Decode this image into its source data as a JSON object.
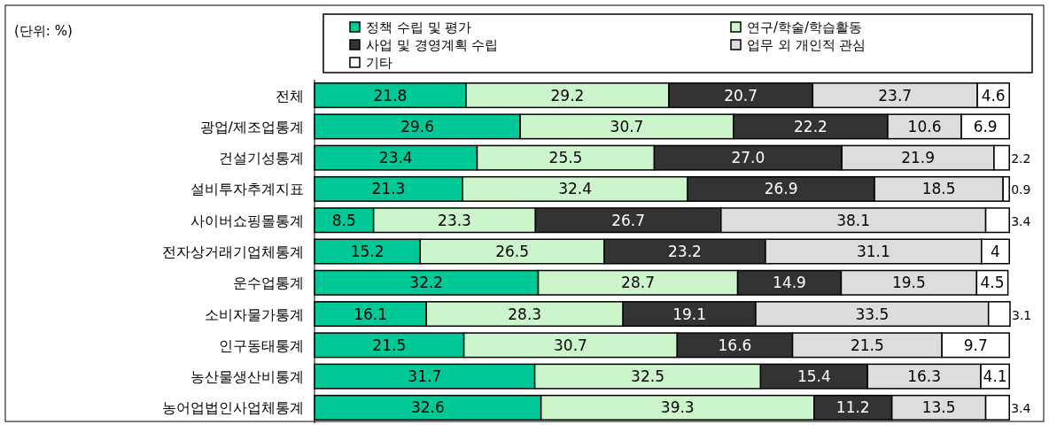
{
  "chart_data": {
    "type": "bar",
    "orientation": "horizontal",
    "stacked": true,
    "legend": "top",
    "annotations": [
      "(단위: %)"
    ],
    "categories": [
      "전체",
      "광업/제조업통계",
      "건설기성통계",
      "설비투자추계지표",
      "사이버쇼핑몰통계",
      "전자상거래기업체통계",
      "운수업통계",
      "소비자물가통계",
      "인구동태통계",
      "농산물생산비통계",
      "농어업법인사업체통계"
    ],
    "series": [
      {
        "name": "정책 수립 및 평가",
        "color": "#00c896",
        "values": [
          21.8,
          29.6,
          23.4,
          21.3,
          8.5,
          15.2,
          32.2,
          16.1,
          21.5,
          31.7,
          32.6
        ],
        "value_labels": [
          "21.8",
          "29.6",
          "23.4",
          "21.3",
          "8.5",
          "15.2",
          "32.2",
          "16.1",
          "21.5",
          "31.7",
          "32.6"
        ]
      },
      {
        "name": "연구/학술/학습활동",
        "color": "#ccf5cc",
        "values": [
          29.2,
          30.7,
          25.5,
          32.4,
          23.3,
          26.5,
          28.7,
          28.3,
          30.7,
          32.5,
          39.3
        ],
        "value_labels": [
          "29.2",
          "30.7",
          "25.5",
          "32.4",
          "23.3",
          "26.5",
          "28.7",
          "28.3",
          "30.7",
          "32.5",
          "39.3"
        ]
      },
      {
        "name": "사업 및 경영계획 수립",
        "color": "#333333",
        "values": [
          20.7,
          22.2,
          27.0,
          26.9,
          26.7,
          23.2,
          14.9,
          19.1,
          16.6,
          15.4,
          11.2
        ],
        "value_labels": [
          "20.7",
          "22.2",
          "27.0",
          "26.9",
          "26.7",
          "23.2",
          "14.9",
          "19.1",
          "16.6",
          "15.4",
          "11.2"
        ]
      },
      {
        "name": "업무 외 개인적 관심",
        "color": "#dddddd",
        "values": [
          23.7,
          10.6,
          21.9,
          18.5,
          38.1,
          31.1,
          19.5,
          33.5,
          21.5,
          16.3,
          13.5
        ],
        "value_labels": [
          "23.7",
          "10.6",
          "21.9",
          "18.5",
          "38.1",
          "31.1",
          "19.5",
          "33.5",
          "21.5",
          "16.3",
          "13.5"
        ]
      },
      {
        "name": "기타",
        "color": "#ffffff",
        "values": [
          4.6,
          6.9,
          2.2,
          0.9,
          3.4,
          4,
          4.5,
          3.1,
          9.7,
          4.1,
          3.4
        ],
        "value_labels": [
          "4.6",
          "6.9",
          "2.2",
          "0.9",
          "3.4",
          "4",
          "4.5",
          "3.1",
          "9.7",
          "4.1",
          "3.4"
        ]
      }
    ]
  }
}
